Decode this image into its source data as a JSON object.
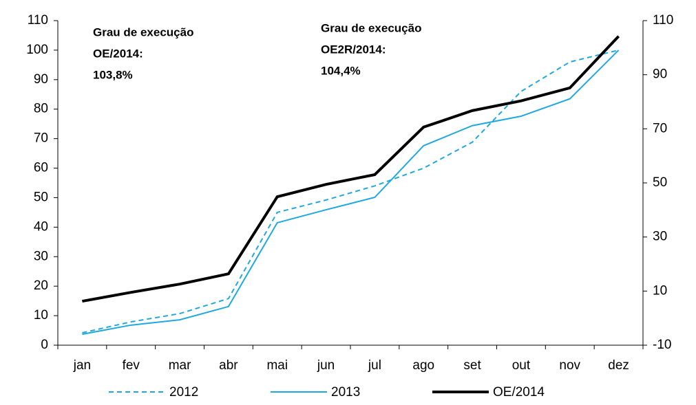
{
  "chart_data": {
    "type": "line",
    "categories": [
      "jan",
      "fev",
      "mar",
      "abr",
      "mai",
      "jun",
      "jul",
      "ago",
      "set",
      "out",
      "nov",
      "dez"
    ],
    "series": [
      {
        "name": "2012",
        "color": "#1fa8e0",
        "dash": true,
        "values": [
          4.2,
          7.9,
          10.7,
          15.8,
          45.0,
          49.2,
          54.0,
          60.0,
          68.8,
          86.0,
          96.0,
          100.0
        ]
      },
      {
        "name": "2013",
        "color": "#1fa8e0",
        "values": [
          3.7,
          6.8,
          8.6,
          13.1,
          41.5,
          45.9,
          50.1,
          67.6,
          74.4,
          77.6,
          83.5,
          100.0
        ]
      },
      {
        "name": "OE/2014",
        "color": "#000000",
        "values": [
          14.9,
          17.9,
          20.7,
          24.2,
          50.3,
          54.5,
          57.8,
          73.9,
          79.5,
          82.8,
          87.2,
          104.7
        ]
      }
    ],
    "ylim": [
      0,
      110
    ],
    "yticks": [
      0,
      10,
      20,
      30,
      40,
      50,
      60,
      70,
      80,
      90,
      100,
      110
    ],
    "y2lim": [
      -10,
      110
    ],
    "y2ticks": [
      -10,
      10,
      30,
      50,
      70,
      90,
      110
    ],
    "annotations": [
      [
        "Grau de execução",
        "OE/2014:",
        "103,8%"
      ],
      [
        "Grau de execução",
        "OE2R/2014:",
        "104,4%"
      ]
    ]
  }
}
